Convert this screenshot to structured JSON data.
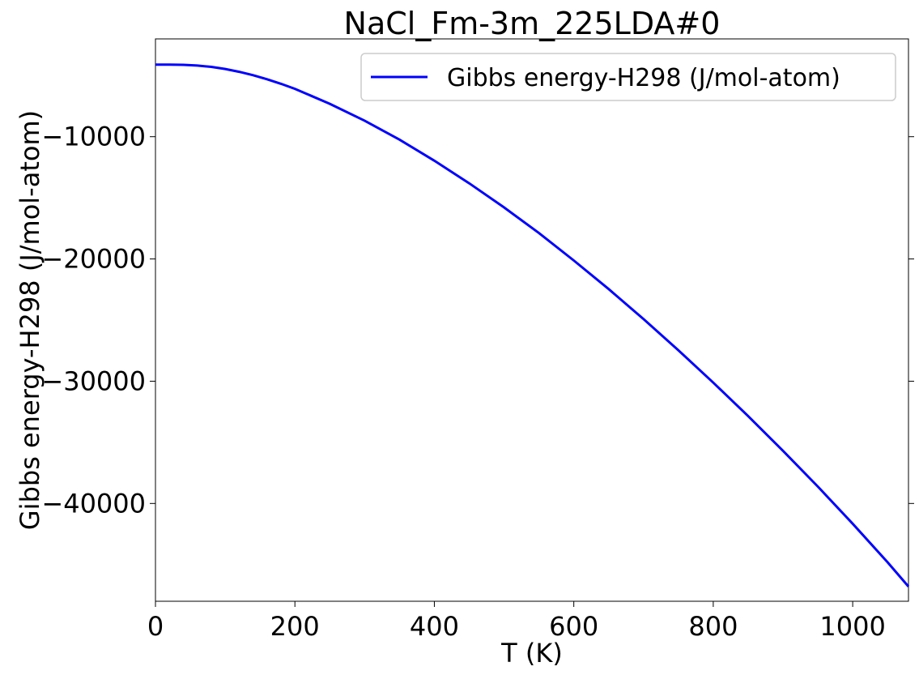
{
  "chart_data": {
    "type": "line",
    "title": "NaCl_Fm-3m_225LDA#0",
    "xlabel": "T (K)",
    "ylabel": "Gibbs energy-H298 (J/mol-atom)",
    "xlim": [
      0,
      1080
    ],
    "ylim": [
      -48000,
      -2000
    ],
    "xticks": [
      0,
      200,
      400,
      600,
      800,
      1000
    ],
    "xtick_labels": [
      "0",
      "200",
      "400",
      "600",
      "800",
      "1000"
    ],
    "yticks": [
      -10000,
      -20000,
      -30000,
      -40000
    ],
    "ytick_labels": [
      "−10000",
      "−20000",
      "−30000",
      "−40000"
    ],
    "grid": false,
    "legend_position": "top-right",
    "series": [
      {
        "name": "Gibbs energy-H298 (J/mol-atom)",
        "color": "#0000ff",
        "x": [
          0,
          20,
          40,
          60,
          80,
          100,
          120,
          140,
          160,
          180,
          200,
          250,
          300,
          350,
          400,
          450,
          500,
          550,
          600,
          650,
          700,
          750,
          800,
          850,
          900,
          950,
          1000,
          1050,
          1080
        ],
        "y": [
          -4100,
          -4100,
          -4120,
          -4180,
          -4290,
          -4460,
          -4690,
          -4970,
          -5300,
          -5670,
          -6080,
          -7310,
          -8690,
          -10240,
          -11960,
          -13810,
          -15790,
          -17880,
          -20130,
          -22460,
          -24920,
          -27470,
          -30120,
          -32850,
          -35690,
          -38620,
          -41660,
          -44810,
          -46800
        ]
      }
    ]
  }
}
